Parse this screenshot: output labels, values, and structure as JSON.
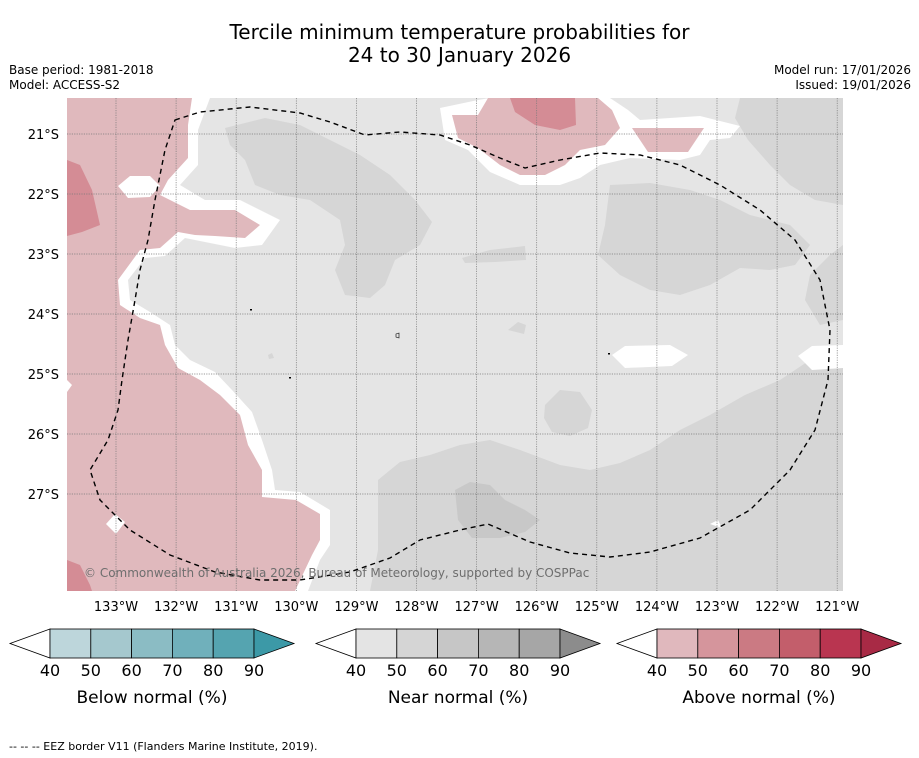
{
  "title": {
    "line1": "Tercile minimum temperature probabilities for",
    "line2": "24 to 30 January 2026"
  },
  "meta": {
    "base_period": "Base period: 1981-2018",
    "model": "Model: ACCESS-S2",
    "model_run": "Model run: 17/01/2026",
    "issued": "Issued: 19/01/2026"
  },
  "map": {
    "lat_labels": [
      "21°S",
      "22°S",
      "23°S",
      "24°S",
      "25°S",
      "26°S",
      "27°S"
    ],
    "lon_labels": [
      "133°W",
      "132°W",
      "131°W",
      "130°W",
      "129°W",
      "128°W",
      "127°W",
      "126°W",
      "125°W",
      "124°W",
      "123°W",
      "122°W",
      "121°W"
    ],
    "copyright": "© Commonwealth of Australia 2026, Bureau of Meteorology, supported by COSPPac",
    "colors": {
      "near_normal_light": "#e5e5e5",
      "near_normal_mid": "#d6d6d6",
      "near_normal_dark": "#c8c8c8",
      "above_light": "#e0b9bd",
      "above_mid": "#d48c95"
    }
  },
  "colorbars": [
    {
      "label": "Below normal (%)",
      "ticks": [
        "40",
        "50",
        "60",
        "70",
        "80",
        "90"
      ],
      "colors": [
        "#bdd6db",
        "#a5c8ce",
        "#8bbcc4",
        "#70b0bb",
        "#55a4b0",
        "#3c99a7"
      ]
    },
    {
      "label": "Near normal (%)",
      "ticks": [
        "40",
        "50",
        "60",
        "70",
        "80",
        "90"
      ],
      "colors": [
        "#e4e4e4",
        "#d5d5d5",
        "#c6c6c6",
        "#b6b6b6",
        "#a6a6a6",
        "#8c8c8c"
      ]
    },
    {
      "label": "Above normal (%)",
      "ticks": [
        "40",
        "50",
        "60",
        "70",
        "80",
        "90"
      ],
      "colors": [
        "#e0b8bd",
        "#d5959c",
        "#cb7a83",
        "#c35e6b",
        "#b93550",
        "#a82a45"
      ]
    }
  ],
  "footnote": "-- -- -- EEZ border V11 (Flanders Marine Institute, 2019)."
}
